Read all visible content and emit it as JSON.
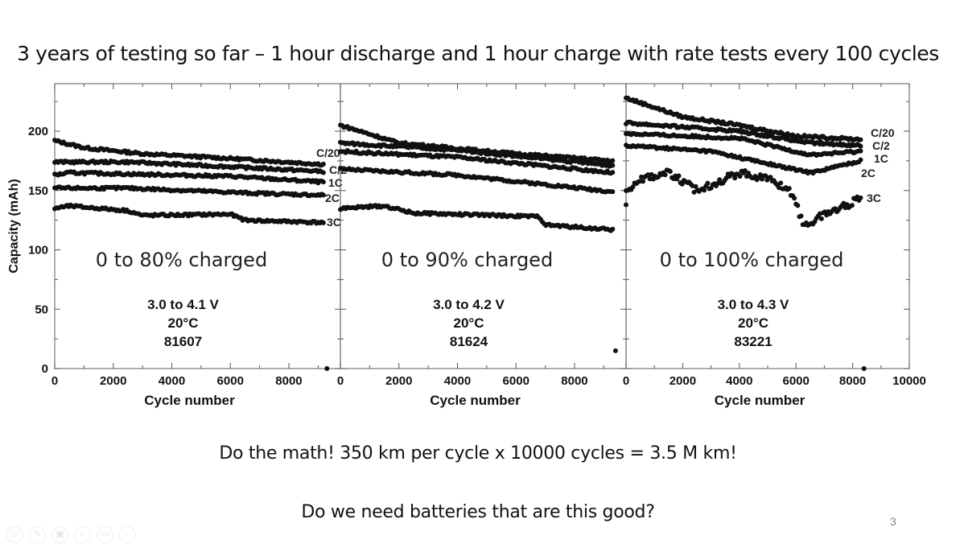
{
  "slide": {
    "title": "3 years of testing so far – 1 hour discharge and 1 hour charge with rate tests every 100 cycles",
    "footer_line1": "Do the math!  350 km per cycle x 10000 cycles = 3.5 M km!",
    "footer_line2": "Do we need batteries that are this good?",
    "page_number": "3"
  },
  "chart_data": [
    {
      "type": "scatter",
      "title": "0 to 80% charged",
      "annotation": [
        "3.0 to 4.1 V",
        "20°C",
        "81607"
      ],
      "xlabel": "Cycle number",
      "ylabel": "Capacity (mAh)",
      "xlim": [
        0,
        9760
      ],
      "ylim": [
        0,
        240
      ],
      "xticks": [
        "0",
        "2000",
        "4000",
        "6000",
        "8000"
      ],
      "yticks": [
        "0",
        "50",
        "100",
        "150",
        "200"
      ],
      "series": [
        {
          "name": "C/20",
          "points": [
            [
              0,
              192
            ],
            [
              1000,
              186
            ],
            [
              3000,
              181
            ],
            [
              6000,
              177
            ],
            [
              9200,
              172
            ]
          ]
        },
        {
          "name": "C/2",
          "points": [
            [
              0,
              174
            ],
            [
              2500,
              174
            ],
            [
              6000,
              170
            ],
            [
              9200,
              166
            ]
          ]
        },
        {
          "name": "1C",
          "points": [
            [
              0,
              163
            ],
            [
              500,
              165
            ],
            [
              6000,
              162
            ],
            [
              9200,
              157
            ]
          ]
        },
        {
          "name": "2C",
          "points": [
            [
              0,
              152
            ],
            [
              2500,
              152
            ],
            [
              6500,
              148
            ],
            [
              9200,
              146
            ]
          ]
        },
        {
          "name": "3C",
          "points": [
            [
              0,
              135
            ],
            [
              500,
              137
            ],
            [
              2500,
              133
            ],
            [
              3000,
              129
            ],
            [
              6000,
              130
            ],
            [
              6500,
              125
            ],
            [
              9200,
              123
            ]
          ]
        }
      ],
      "outliers": [
        [
          9300,
          0
        ]
      ]
    },
    {
      "type": "scatter",
      "title": "0 to 90% charged",
      "annotation": [
        "3.0 to 4.2 V",
        "20°C",
        "81624"
      ],
      "xlabel": "Cycle number",
      "ylabel": "",
      "xlim": [
        0,
        9760
      ],
      "ylim": [
        0,
        240
      ],
      "xticks": [
        "0",
        "2000",
        "4000",
        "6000",
        "8000"
      ],
      "yticks": [],
      "series": [
        {
          "name": "C/20",
          "points": [
            [
              0,
              205
            ],
            [
              2000,
              190
            ],
            [
              6000,
              181
            ],
            [
              9300,
              175
            ]
          ]
        },
        {
          "name": "C/2",
          "points": [
            [
              0,
              190
            ],
            [
              4000,
              184
            ],
            [
              9300,
              171
            ]
          ]
        },
        {
          "name": "1C",
          "points": [
            [
              0,
              183
            ],
            [
              4000,
              178
            ],
            [
              9300,
              165
            ]
          ]
        },
        {
          "name": "2C",
          "points": [
            [
              0,
              168
            ],
            [
              4000,
              163
            ],
            [
              9300,
              149
            ]
          ]
        },
        {
          "name": "3C",
          "points": [
            [
              0,
              135
            ],
            [
              1500,
              137
            ],
            [
              2500,
              131
            ],
            [
              6800,
              128
            ],
            [
              7000,
              121
            ],
            [
              9300,
              117
            ]
          ]
        }
      ],
      "outliers": [
        [
          9400,
          15
        ]
      ]
    },
    {
      "type": "scatter",
      "title": "0 to 100% charged",
      "annotation": [
        "3.0 to 4.3 V",
        "20°C",
        "83221"
      ],
      "xlabel": "Cycle number",
      "ylabel": "",
      "xlim": [
        0,
        10000
      ],
      "ylim": [
        0,
        240
      ],
      "xticks": [
        "0",
        "2000",
        "4000",
        "6000",
        "8000",
        "10000"
      ],
      "yticks": [],
      "series": [
        {
          "name": "C/20",
          "points": [
            [
              0,
              228
            ],
            [
              2000,
              212
            ],
            [
              4000,
              205
            ],
            [
              6000,
              196
            ],
            [
              8300,
              193
            ]
          ]
        },
        {
          "name": "C/2",
          "points": [
            [
              0,
              207
            ],
            [
              4000,
              200
            ],
            [
              6500,
              190
            ],
            [
              8300,
              188
            ]
          ]
        },
        {
          "name": "1C",
          "points": [
            [
              0,
              198
            ],
            [
              4000,
              194
            ],
            [
              6500,
              180
            ],
            [
              8300,
              183
            ]
          ]
        },
        {
          "name": "2C",
          "points": [
            [
              0,
              188
            ],
            [
              3000,
              183
            ],
            [
              5500,
              170
            ],
            [
              6500,
              165
            ],
            [
              8300,
              175
            ]
          ]
        },
        {
          "name": "3C",
          "points": [
            [
              0,
              150
            ],
            [
              500,
              160
            ],
            [
              1500,
              165
            ],
            [
              2500,
              150
            ],
            [
              3000,
              155
            ],
            [
              4000,
              165
            ],
            [
              5000,
              160
            ],
            [
              5800,
              150
            ],
            [
              6300,
              120
            ],
            [
              7000,
              130
            ],
            [
              8000,
              140
            ],
            [
              8300,
              145
            ]
          ]
        }
      ],
      "outliers": [
        [
          8400,
          0
        ],
        [
          0,
          138
        ]
      ]
    }
  ]
}
